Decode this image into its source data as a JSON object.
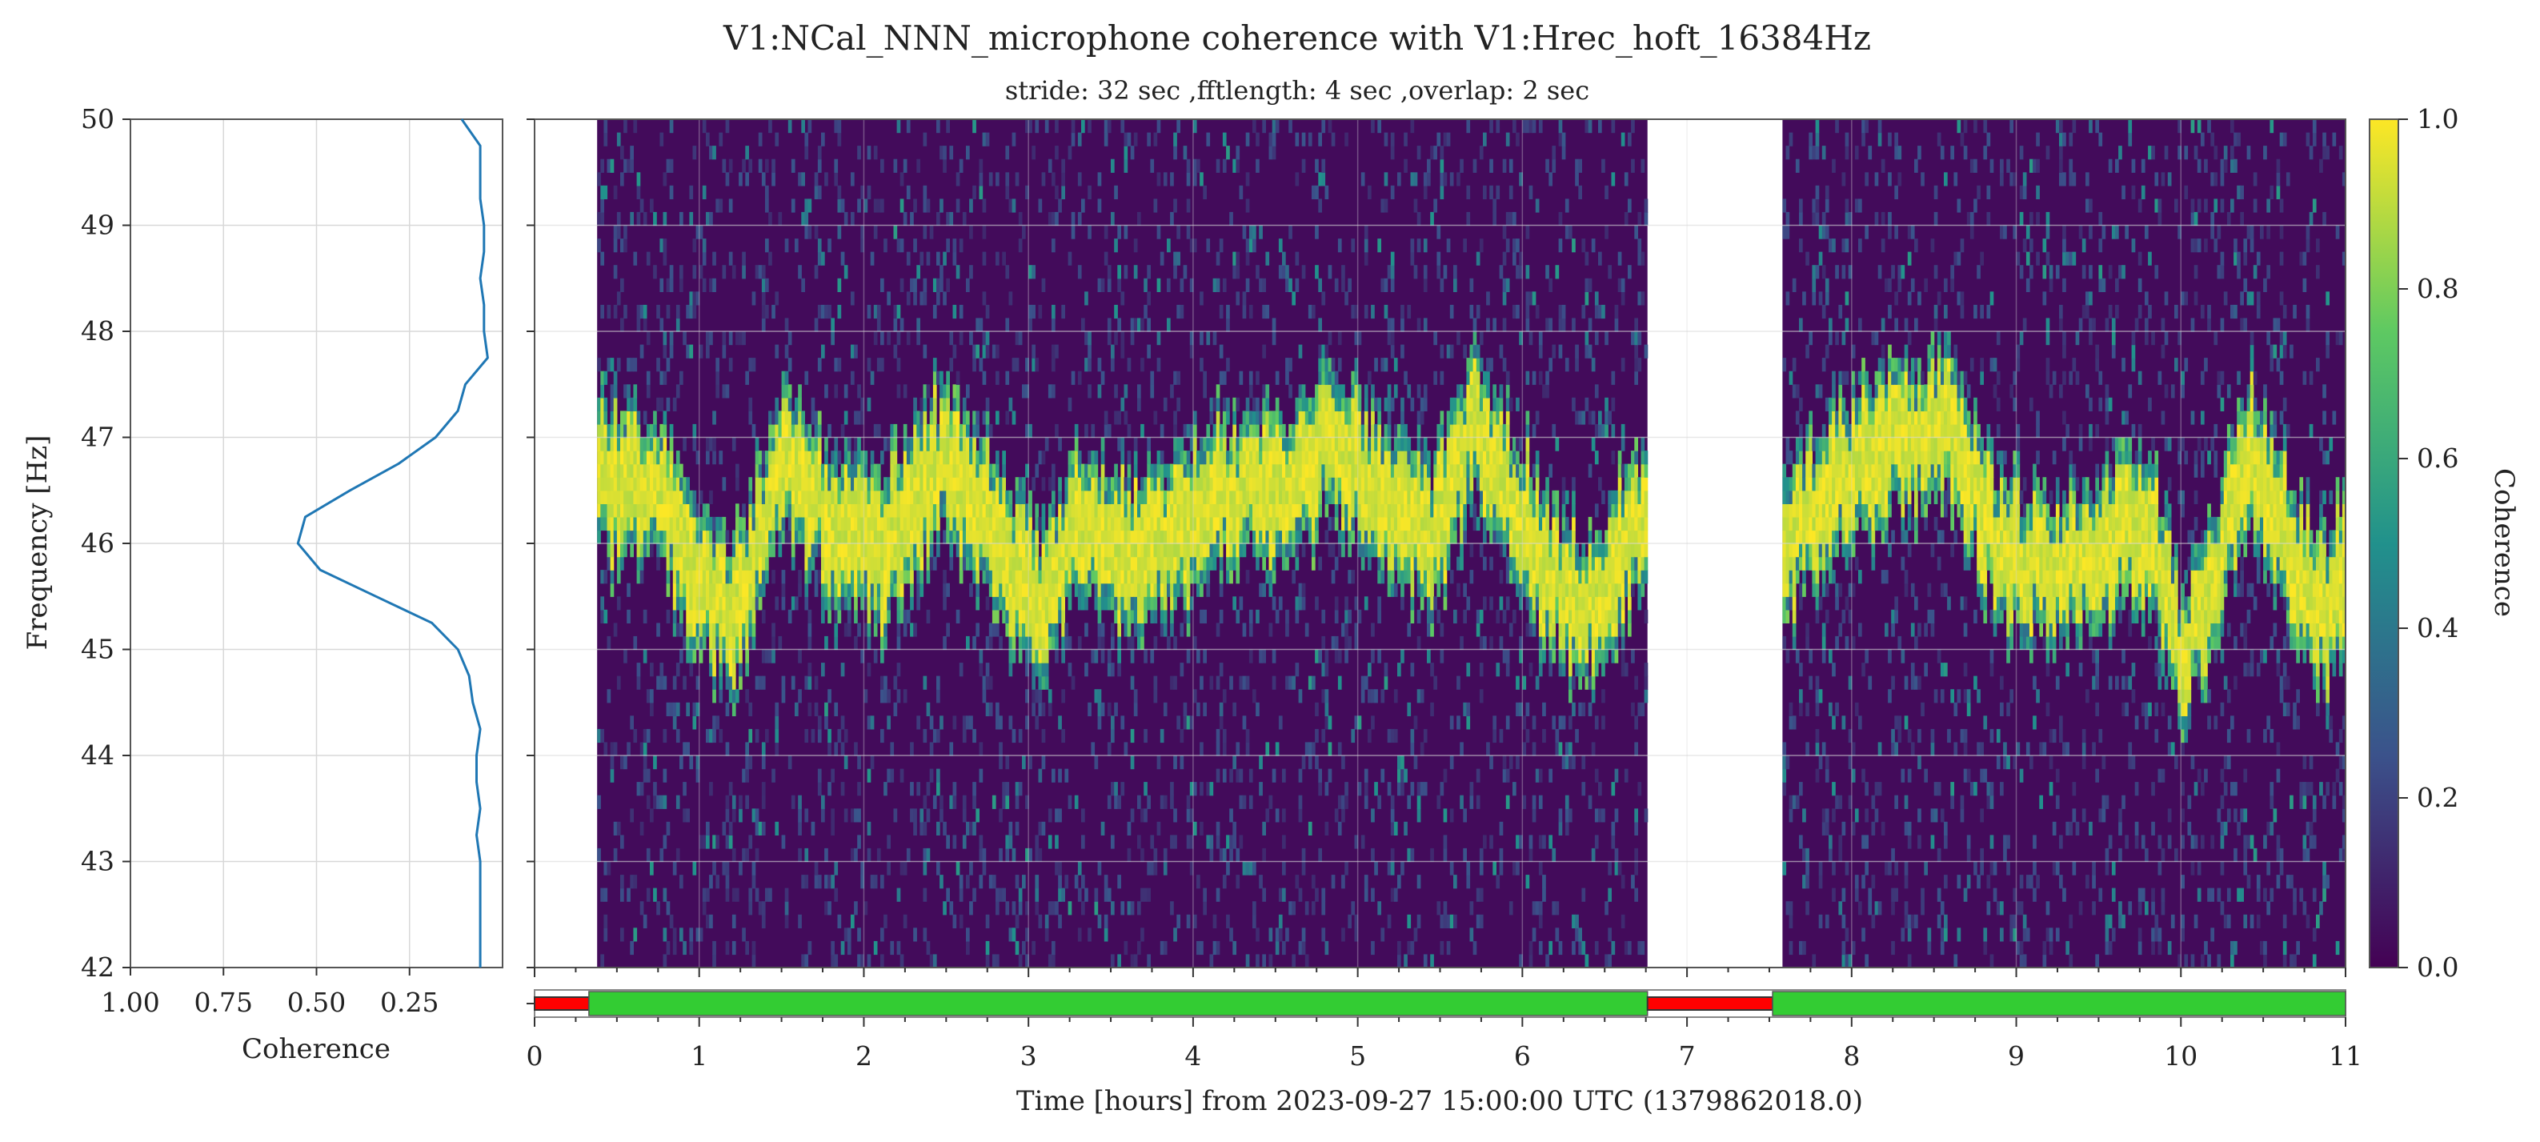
{
  "chart_data": {
    "type": "heatmap",
    "title": "V1:NCal_NNN_microphone coherence with V1:Hrec_hoft_16384Hz",
    "subtitle": "stride: 32 sec ,fftlength: 4 sec ,overlap: 2 sec",
    "colormap": [
      "#440154",
      "#3b528b",
      "#21918c",
      "#5ec962",
      "#fde725"
    ],
    "spectrogram": {
      "xlabel": "Time [hours] from 2023-09-27 15:00:00 UTC (1379862018.0)",
      "ylabel": "Frequency [Hz]",
      "xlim": [
        0,
        11
      ],
      "ylim": [
        42,
        50
      ],
      "xticks": [
        "0",
        "1",
        "2",
        "3",
        "4",
        "5",
        "6",
        "7",
        "8",
        "9",
        "10",
        "11"
      ],
      "yticks": [
        "42",
        "43",
        "44",
        "45",
        "46",
        "47",
        "48",
        "49",
        "50"
      ],
      "data_segments_hours": [
        [
          0.38,
          6.76
        ],
        [
          7.58,
          11.0
        ]
      ],
      "peak_track": {
        "t": [
          0.4,
          0.6,
          0.8,
          1.0,
          1.2,
          1.5,
          1.8,
          2.1,
          2.45,
          2.8,
          3.05,
          3.3,
          3.7,
          4.1,
          4.5,
          4.85,
          5.2,
          5.45,
          5.7,
          6.0,
          6.2,
          6.45,
          6.75,
          7.6,
          7.9,
          8.2,
          8.6,
          8.9,
          9.2,
          9.5,
          9.8,
          10.0,
          10.2,
          10.4,
          10.55,
          10.7,
          10.9,
          11.0
        ],
        "f": [
          46.6,
          46.6,
          46.3,
          45.6,
          45.3,
          46.8,
          46.2,
          45.9,
          46.8,
          46.1,
          45.4,
          46.1,
          45.9,
          46.4,
          46.5,
          47.0,
          46.3,
          46.0,
          47.1,
          46.2,
          45.6,
          45.4,
          46.3,
          46.0,
          46.6,
          46.9,
          47.1,
          45.9,
          45.8,
          46.0,
          46.1,
          44.9,
          45.7,
          46.9,
          46.4,
          45.7,
          45.3,
          46.0
        ]
      }
    },
    "colorbar": {
      "label": "Coherence",
      "range": [
        0,
        1
      ],
      "ticks": [
        "0.0",
        "0.2",
        "0.4",
        "0.6",
        "0.8",
        "1.0"
      ]
    },
    "side_profile": {
      "type": "line",
      "xlabel": "Coherence",
      "xlim": [
        1.0,
        0.0
      ],
      "xticks": [
        "1.00",
        "0.75",
        "0.50",
        "0.25"
      ],
      "color": "#1f77b4",
      "frequency": [
        42.0,
        42.25,
        42.5,
        42.75,
        43.0,
        43.25,
        43.5,
        43.75,
        44.0,
        44.25,
        44.5,
        44.75,
        45.0,
        45.25,
        45.5,
        45.75,
        46.0,
        46.25,
        46.5,
        46.75,
        47.0,
        47.25,
        47.5,
        47.75,
        48.0,
        48.25,
        48.5,
        48.75,
        49.0,
        49.25,
        49.5,
        49.75,
        50.0
      ],
      "coherence": [
        0.06,
        0.06,
        0.06,
        0.06,
        0.06,
        0.07,
        0.06,
        0.07,
        0.07,
        0.06,
        0.08,
        0.09,
        0.12,
        0.19,
        0.34,
        0.49,
        0.55,
        0.53,
        0.41,
        0.28,
        0.18,
        0.12,
        0.1,
        0.04,
        0.05,
        0.05,
        0.06,
        0.05,
        0.05,
        0.06,
        0.06,
        0.06,
        0.11
      ]
    },
    "state_bar": {
      "segments": [
        {
          "start": 0.0,
          "end": 0.33,
          "state": "off",
          "color": "#ff0000"
        },
        {
          "start": 0.33,
          "end": 6.76,
          "state": "on",
          "color": "#33cc33"
        },
        {
          "start": 6.76,
          "end": 7.52,
          "state": "off",
          "color": "#ff0000"
        },
        {
          "start": 7.52,
          "end": 11.0,
          "state": "on",
          "color": "#33cc33"
        }
      ]
    }
  }
}
